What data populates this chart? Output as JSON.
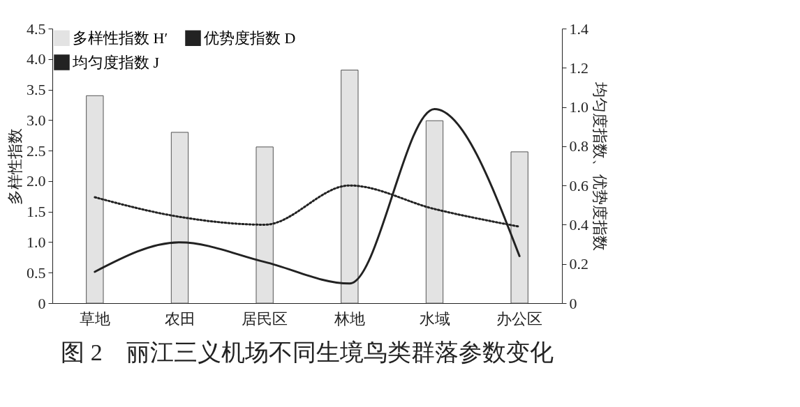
{
  "chart_data": {
    "type": "bar",
    "title": "图 2　丽江三义机场不同生境鸟类群落参数变化",
    "ylabel": "多样性指数",
    "y2label": "均匀度指数、优势度指数",
    "categories": [
      "草地",
      "农田",
      "居民区",
      "林地",
      "水域",
      "办公区"
    ],
    "series": [
      {
        "name": "多样性指数 H′",
        "color": "#e3e3e3",
        "values": [
          3.4,
          2.8,
          2.56,
          3.82,
          2.99,
          2.48
        ]
      },
      {
        "name": "均匀度指数 J",
        "type": "line",
        "axis": "y2",
        "line_style": "dotted",
        "color": "#222222",
        "values": [
          0.54,
          0.44,
          0.4,
          0.6,
          0.48,
          0.39
        ]
      },
      {
        "name": "优势度指数 D",
        "type": "line",
        "axis": "y2",
        "line_style": "solid",
        "color": "#222222",
        "values": [
          0.16,
          0.31,
          0.21,
          0.1,
          0.99,
          0.24
        ]
      }
    ],
    "ylim": [
      0,
      4.5
    ],
    "yticks": [
      0,
      0.5,
      {
        "value": 1,
        "label": "1.0"
      },
      1.5,
      {
        "value": 2,
        "label": "2.0"
      },
      2.5,
      {
        "value": 3,
        "label": "3.0"
      },
      3.5,
      {
        "value": 4,
        "label": "4.0"
      },
      4.5
    ],
    "y2lim": [
      0,
      1.4
    ],
    "y2ticks": [
      0,
      0.2,
      0.4,
      0.6,
      0.8,
      {
        "value": 1,
        "label": "1.0"
      },
      1.2,
      1.4
    ],
    "legend": "top left",
    "grid": false,
    "marker": "none"
  }
}
